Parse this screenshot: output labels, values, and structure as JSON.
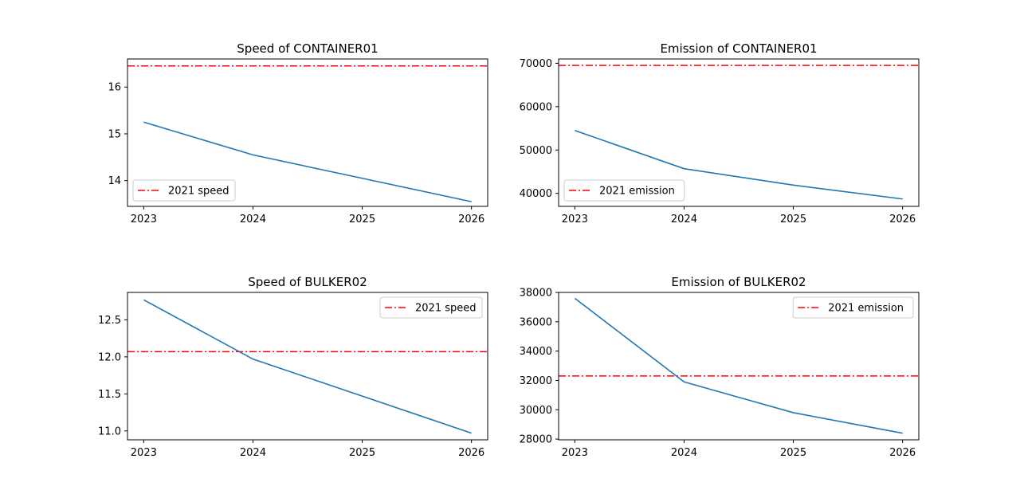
{
  "chart_data": [
    {
      "type": "line",
      "title": "Speed of CONTAINER01",
      "x": [
        2023,
        2024,
        2025,
        2026
      ],
      "x_ticks": [
        "2023",
        "2024",
        "2025",
        "2026"
      ],
      "series": [
        {
          "values": [
            15.25,
            14.55,
            14.05,
            13.55
          ],
          "color": "#1f77b4"
        }
      ],
      "reference_line": {
        "label": "2021 speed",
        "value": 16.45,
        "color": "#ff0000",
        "style": "dash-dot"
      },
      "ylim": [
        13.45,
        16.6
      ],
      "y_ticks": [
        14,
        15,
        16
      ],
      "y_tick_labels": [
        "14",
        "15",
        "16"
      ],
      "legend_position": "lower-left"
    },
    {
      "type": "line",
      "title": "Emission of CONTAINER01",
      "x": [
        2023,
        2024,
        2025,
        2026
      ],
      "x_ticks": [
        "2023",
        "2024",
        "2025",
        "2026"
      ],
      "series": [
        {
          "values": [
            54500,
            45700,
            41900,
            38700
          ],
          "color": "#1f77b4"
        }
      ],
      "reference_line": {
        "label": "2021 emission",
        "value": 69500,
        "color": "#ff0000",
        "style": "dash-dot"
      },
      "ylim": [
        37000,
        71000
      ],
      "y_ticks": [
        40000,
        50000,
        60000,
        70000
      ],
      "y_tick_labels": [
        "40000",
        "50000",
        "60000",
        "70000"
      ],
      "legend_position": "lower-left"
    },
    {
      "type": "line",
      "title": "Speed of BULKER02",
      "x": [
        2023,
        2024,
        2025,
        2026
      ],
      "x_ticks": [
        "2023",
        "2024",
        "2025",
        "2026"
      ],
      "series": [
        {
          "values": [
            12.77,
            11.97,
            11.47,
            10.97
          ],
          "color": "#1f77b4"
        }
      ],
      "reference_line": {
        "label": "2021 speed",
        "value": 12.07,
        "color": "#ff0000",
        "style": "dash-dot"
      },
      "ylim": [
        10.88,
        12.87
      ],
      "y_ticks": [
        11.0,
        11.5,
        12.0,
        12.5
      ],
      "y_tick_labels": [
        "11.0",
        "11.5",
        "12.0",
        "12.5"
      ],
      "legend_position": "upper-right"
    },
    {
      "type": "line",
      "title": "Emission of BULKER02",
      "x": [
        2023,
        2024,
        2025,
        2026
      ],
      "x_ticks": [
        "2023",
        "2024",
        "2025",
        "2026"
      ],
      "series": [
        {
          "values": [
            37600,
            31900,
            29800,
            28400
          ],
          "color": "#1f77b4"
        }
      ],
      "reference_line": {
        "label": "2021 emission",
        "value": 32300,
        "color": "#ff0000",
        "style": "dash-dot"
      },
      "ylim": [
        27950,
        38000
      ],
      "y_ticks": [
        28000,
        30000,
        32000,
        34000,
        36000,
        38000
      ],
      "y_tick_labels": [
        "28000",
        "30000",
        "32000",
        "34000",
        "36000",
        "38000"
      ],
      "legend_position": "upper-right"
    }
  ]
}
